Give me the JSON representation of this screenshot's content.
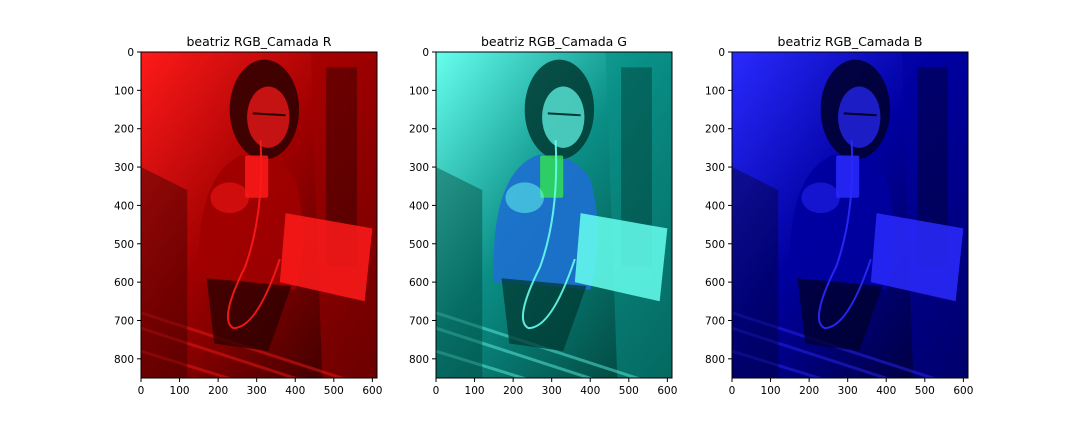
{
  "figure": {
    "background": "#ffffff"
  },
  "chart_data": [
    {
      "type": "heatmap",
      "title": "beatriz RGB_Camada R",
      "xlabel": "",
      "ylabel": "",
      "xlim": [
        0,
        612
      ],
      "ylim": [
        850,
        0
      ],
      "xticks": [
        0,
        100,
        200,
        300,
        400,
        500,
        600
      ],
      "yticks": [
        0,
        100,
        200,
        300,
        400,
        500,
        600,
        700,
        800
      ],
      "channel": "R",
      "colors": {
        "shadow": "#2a0000",
        "mid": "#a00000",
        "light": "#ff1a1a",
        "accent": "#ff0000"
      }
    },
    {
      "type": "heatmap",
      "title": "beatriz RGB_Camada G",
      "xlabel": "",
      "ylabel": "",
      "xlim": [
        0,
        612
      ],
      "ylim": [
        850,
        0
      ],
      "xticks": [
        0,
        100,
        200,
        300,
        400,
        500,
        600
      ],
      "yticks": [
        0,
        100,
        200,
        300,
        400,
        500,
        600,
        700,
        800
      ],
      "channel": "G",
      "colors": {
        "shadow": "#003a33",
        "mid": "#0a8f86",
        "light": "#66ffee",
        "accent": "#1e6fd0"
      }
    },
    {
      "type": "heatmap",
      "title": "beatriz RGB_Camada B",
      "xlabel": "",
      "ylabel": "",
      "xlim": [
        0,
        612
      ],
      "ylim": [
        850,
        0
      ],
      "xticks": [
        0,
        100,
        200,
        300,
        400,
        500,
        600
      ],
      "yticks": [
        0,
        100,
        200,
        300,
        400,
        500,
        600,
        700,
        800
      ],
      "channel": "B",
      "colors": {
        "shadow": "#00002a",
        "mid": "#0000a0",
        "light": "#2a2aff",
        "accent": "#0000ff"
      }
    }
  ]
}
